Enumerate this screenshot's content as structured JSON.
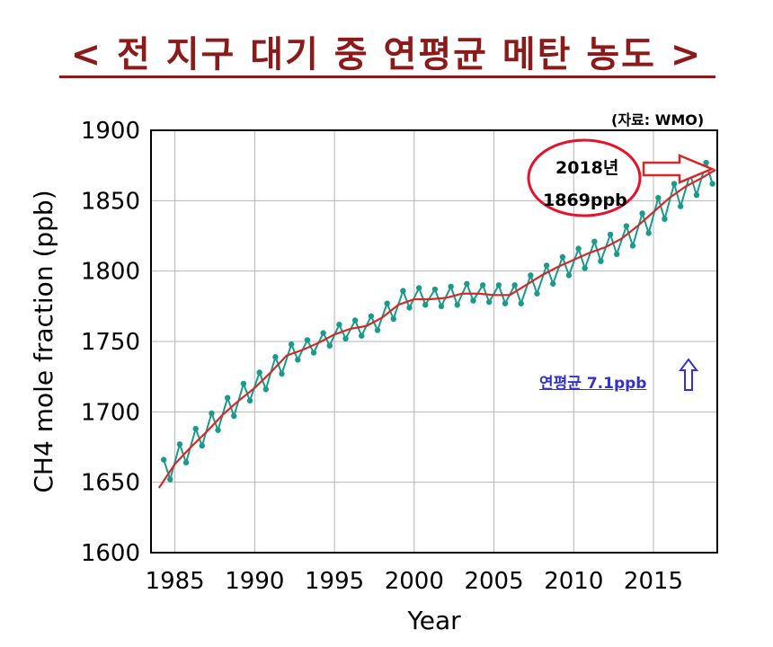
{
  "title": "< 전 지구 대기 중 연평균 메탄 농도 >",
  "source": "(자료: WMO)",
  "callout": {
    "year": "2018년",
    "value": "1869ppb"
  },
  "annual_rise": "연평균 7.1ppb",
  "colors": {
    "title": "#8b1a1a",
    "trend_line": "#d62828",
    "monthly_points": "#1a9a8a",
    "callout_circle": "#e8102a",
    "arrow": "#d62828",
    "up_arrow": "#3333cc"
  },
  "chart_data": {
    "type": "line",
    "xlabel": "Year",
    "ylabel": "CH4 mole fraction (ppb)",
    "ylim": [
      1600,
      1900
    ],
    "xlim": [
      1983.5,
      2019
    ],
    "yticks": [
      "1600",
      "1650",
      "1700",
      "1750",
      "1800",
      "1850",
      "1900"
    ],
    "xticks": [
      "1985",
      "1990",
      "1995",
      "2000",
      "2005",
      "2010",
      "2015"
    ],
    "grid": true,
    "series": [
      {
        "x": [
          1984,
          1985,
          1986,
          1987,
          1988,
          1989,
          1990,
          1991,
          1992,
          1993,
          1994,
          1995,
          1996,
          1997,
          1998,
          1999,
          2000,
          2001,
          2002,
          2003,
          2004,
          2005,
          2006,
          2007,
          2008,
          2009,
          2010,
          2011,
          2012,
          2013,
          2014,
          2015,
          2016,
          2017,
          2018,
          2018.9
        ],
        "y": [
          1646,
          1663,
          1675,
          1686,
          1698,
          1708,
          1717,
          1728,
          1740,
          1744,
          1749,
          1755,
          1759,
          1761,
          1767,
          1776,
          1780,
          1780,
          1781,
          1784,
          1784,
          1783,
          1783,
          1790,
          1797,
          1803,
          1808,
          1813,
          1817,
          1823,
          1832,
          1842,
          1852,
          1860,
          1866,
          1872
        ]
      },
      {
        "x": [
          1984.3,
          1984.7,
          1985.3,
          1985.7,
          1986.3,
          1986.7,
          1987.3,
          1987.7,
          1988.3,
          1988.7,
          1989.3,
          1989.7,
          1990.3,
          1990.7,
          1991.3,
          1991.7,
          1992.3,
          1992.7,
          1993.3,
          1993.7,
          1994.3,
          1994.7,
          1995.3,
          1995.7,
          1996.3,
          1996.7,
          1997.3,
          1997.7,
          1998.3,
          1998.7,
          1999.3,
          1999.7,
          2000.3,
          2000.7,
          2001.3,
          2001.7,
          2002.3,
          2002.7,
          2003.3,
          2003.7,
          2004.3,
          2004.7,
          2005.3,
          2005.7,
          2006.3,
          2006.7,
          2007.3,
          2007.7,
          2008.3,
          2008.7,
          2009.3,
          2009.7,
          2010.3,
          2010.7,
          2011.3,
          2011.7,
          2012.3,
          2012.7,
          2013.3,
          2013.7,
          2014.3,
          2014.7,
          2015.3,
          2015.7,
          2016.3,
          2016.7,
          2017.3,
          2017.7,
          2018.3,
          2018.7
        ],
        "y": [
          1666,
          1652,
          1677,
          1664,
          1688,
          1676,
          1699,
          1687,
          1710,
          1697,
          1720,
          1708,
          1728,
          1716,
          1739,
          1727,
          1748,
          1737,
          1751,
          1742,
          1756,
          1747,
          1762,
          1752,
          1765,
          1754,
          1768,
          1758,
          1777,
          1766,
          1786,
          1774,
          1788,
          1776,
          1787,
          1775,
          1789,
          1776,
          1791,
          1779,
          1790,
          1778,
          1790,
          1777,
          1790,
          1777,
          1797,
          1784,
          1804,
          1791,
          1810,
          1797,
          1816,
          1802,
          1821,
          1807,
          1826,
          1812,
          1832,
          1818,
          1841,
          1827,
          1852,
          1837,
          1862,
          1846,
          1869,
          1854,
          1877,
          1862
        ]
      }
    ]
  }
}
